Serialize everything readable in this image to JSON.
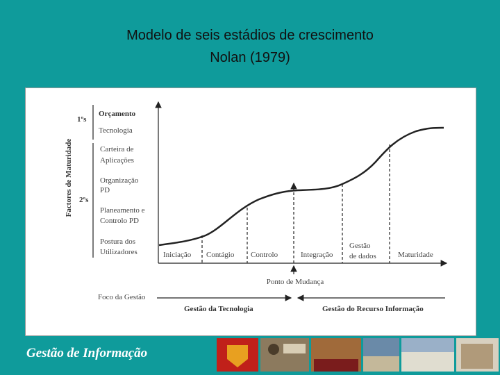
{
  "header": {
    "title_lines": [
      "Modelo de seis estádios de crescimento",
      "Nolan (1979)"
    ]
  },
  "diagram": {
    "axis_label": "Factores de Maturidade",
    "groups": [
      "1ºs",
      "2ºs"
    ],
    "factors": [
      [
        "Orçamento"
      ],
      [
        "Tecnologia"
      ],
      [
        "Carteira de",
        "Aplicações"
      ],
      [
        "Organização",
        "PD"
      ],
      [
        "Planeamento e",
        "Controlo PD"
      ],
      [
        "Postura dos",
        "Utilizadores"
      ]
    ],
    "stages": [
      [
        "Iniciação"
      ],
      [
        "Contágio"
      ],
      [
        "Controlo"
      ],
      [
        "Integração"
      ],
      [
        "Gestão",
        "de dados"
      ],
      [
        "Maturidade"
      ]
    ],
    "change_point": "Ponto de Mudança",
    "focus_label": "Foco da Gestão",
    "focus": [
      "Gestão da Tecnologia",
      "Gestão do Recurso Informação"
    ]
  },
  "footer": {
    "text": "Gestão de Informação"
  }
}
